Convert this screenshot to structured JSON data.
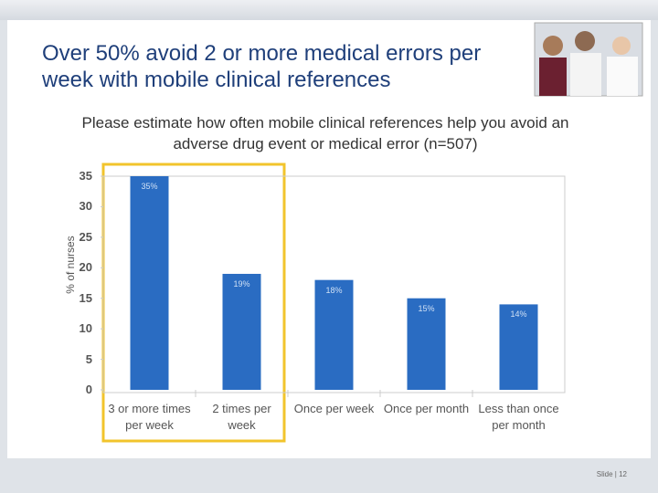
{
  "chart_data": {
    "type": "bar",
    "title": "Over 50% avoid 2 or more medical errors per week with mobile clinical references",
    "subtitle": "Please estimate how often mobile clinical references help you avoid an adverse drug event or medical error (n=507)",
    "y_label": "% of nurses",
    "categories": [
      "3 or more times per week",
      "2 times per week",
      "Once per week",
      "Once per month",
      "Less than once per month"
    ],
    "values": [
      35,
      19,
      18,
      15,
      14
    ],
    "value_labels": [
      "35%",
      "19%",
      "18%",
      "15%",
      "14%"
    ],
    "color": "#2a6cc2",
    "ylim": [
      0,
      35
    ],
    "yticks": [
      0,
      5,
      10,
      15,
      20,
      25,
      30,
      35
    ]
  },
  "footer": "Slide | 12"
}
